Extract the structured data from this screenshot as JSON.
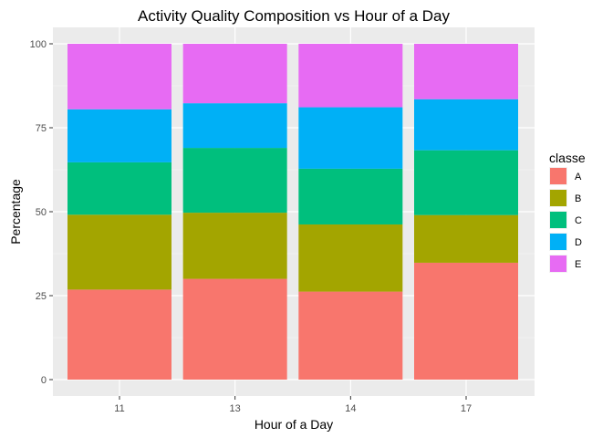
{
  "chart_data": {
    "type": "bar",
    "stacked": true,
    "title": "Activity Quality Composition vs Hour of a Day",
    "xlabel": "Hour of a Day",
    "ylabel": "Percentage",
    "categories": [
      "11",
      "13",
      "14",
      "17"
    ],
    "ylim": [
      0,
      100
    ],
    "yticks": [
      0,
      25,
      50,
      75,
      100
    ],
    "grid": true,
    "legend": {
      "title": "classe",
      "placement": "right"
    },
    "series": [
      {
        "name": "A",
        "color": "#F8766D",
        "values": [
          26.8,
          30.0,
          26.2,
          34.8
        ]
      },
      {
        "name": "B",
        "color": "#A3A500",
        "values": [
          22.3,
          19.7,
          20.0,
          14.2
        ]
      },
      {
        "name": "C",
        "color": "#00BF7D",
        "values": [
          15.6,
          19.3,
          16.6,
          19.3
        ]
      },
      {
        "name": "D",
        "color": "#00B0F6",
        "values": [
          15.8,
          13.3,
          18.3,
          15.2
        ]
      },
      {
        "name": "E",
        "color": "#E76BF3",
        "values": [
          19.5,
          17.7,
          18.9,
          16.5
        ]
      }
    ]
  }
}
